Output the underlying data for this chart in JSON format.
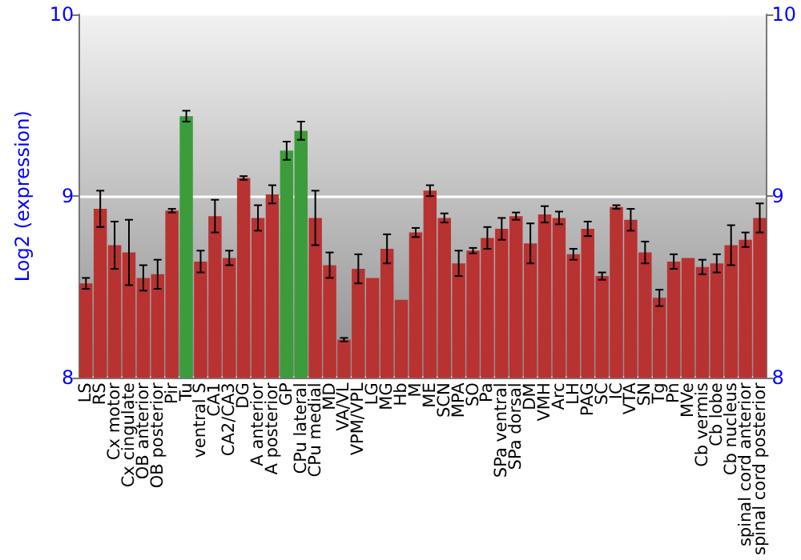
{
  "chart_data": {
    "type": "bar",
    "ylabel": "Log2 (expression)",
    "categories": [
      "LS",
      "RS",
      "Cx motor",
      "Cx cingulate",
      "OB anterior",
      "OB posterior",
      "Pir",
      "Tu",
      "ventral S",
      "CA1",
      "CA2/CA3",
      "DG",
      "A anterior",
      "A posterior",
      "GP",
      "CPu lateral",
      "CPu medial",
      "MD",
      "VA/VL",
      "VPM/VPL",
      "LG",
      "MG",
      "Hb",
      "M",
      "ME",
      "SCN",
      "MPA",
      "SO",
      "Pa",
      "SPa ventral",
      "SPa dorsal",
      "DM",
      "VMH",
      "Arc",
      "LH",
      "PAG",
      "SC",
      "IC",
      "VTA",
      "SN",
      "Tg",
      "Pn",
      "MVe",
      "Cb vermis",
      "Cb lobe",
      "Cb nucleus",
      "spinal cord anterior",
      "spinal cord posterior"
    ],
    "values": [
      8.52,
      8.93,
      8.73,
      8.69,
      8.55,
      8.57,
      8.92,
      9.44,
      8.64,
      8.89,
      8.66,
      9.1,
      8.88,
      9.01,
      9.25,
      9.36,
      8.88,
      8.62,
      8.21,
      8.6,
      8.55,
      8.71,
      8.43,
      8.8,
      9.03,
      8.88,
      8.63,
      8.7,
      8.77,
      8.82,
      8.89,
      8.74,
      8.9,
      8.88,
      8.68,
      8.82,
      8.56,
      8.94,
      8.87,
      8.69,
      8.44,
      8.64,
      8.66,
      8.61,
      8.63,
      8.73,
      8.76,
      8.88
    ],
    "errors": [
      0.03,
      0.1,
      0.13,
      0.18,
      0.07,
      0.08,
      0.01,
      0.03,
      0.06,
      0.09,
      0.04,
      0.01,
      0.07,
      0.05,
      0.05,
      0.05,
      0.15,
      0.07,
      0.01,
      0.08,
      null,
      0.08,
      null,
      0.025,
      0.03,
      0.025,
      0.07,
      0.015,
      0.06,
      0.06,
      0.02,
      0.11,
      0.045,
      0.035,
      0.03,
      0.04,
      0.02,
      0.01,
      0.06,
      0.06,
      0.045,
      0.04,
      null,
      0.04,
      0.05,
      0.11,
      0.04,
      0.08
    ],
    "colors": [
      "#b83232",
      "#b83232",
      "#b83232",
      "#b83232",
      "#b83232",
      "#b83232",
      "#b83232",
      "#3c9c3c",
      "#b83232",
      "#b83232",
      "#b83232",
      "#b83232",
      "#b83232",
      "#b83232",
      "#3c9c3c",
      "#3c9c3c",
      "#b83232",
      "#b83232",
      "#b83232",
      "#b83232",
      "#b83232",
      "#b83232",
      "#b83232",
      "#b83232",
      "#b83232",
      "#b83232",
      "#b83232",
      "#b83232",
      "#b83232",
      "#b83232",
      "#b83232",
      "#b83232",
      "#b83232",
      "#b83232",
      "#b83232",
      "#b83232",
      "#b83232",
      "#b83232",
      "#b83232",
      "#b83232",
      "#b83232",
      "#b83232",
      "#b83232",
      "#b83232",
      "#b83232",
      "#b83232",
      "#b83232",
      "#b83232"
    ],
    "ylim": [
      8,
      10
    ],
    "yticks": [
      8,
      9,
      10
    ],
    "y2lim": [
      8,
      10
    ],
    "y2ticks": [
      8,
      9,
      10
    ],
    "grid": "y"
  }
}
